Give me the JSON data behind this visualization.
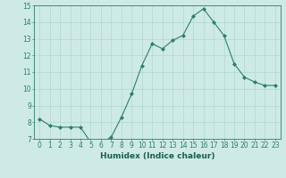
{
  "x": [
    0,
    1,
    2,
    3,
    4,
    5,
    6,
    7,
    8,
    9,
    10,
    11,
    12,
    13,
    14,
    15,
    16,
    17,
    18,
    19,
    20,
    21,
    22,
    23
  ],
  "y": [
    8.2,
    7.8,
    7.7,
    7.7,
    7.7,
    6.8,
    6.75,
    7.1,
    8.3,
    9.7,
    11.4,
    12.7,
    12.4,
    12.9,
    13.2,
    14.35,
    14.8,
    14.0,
    13.2,
    11.5,
    10.7,
    10.4,
    10.2,
    10.2
  ],
  "xlabel": "Humidex (Indice chaleur)",
  "ylim": [
    7,
    15
  ],
  "xlim_min": -0.5,
  "xlim_max": 23.5,
  "yticks": [
    7,
    8,
    9,
    10,
    11,
    12,
    13,
    14,
    15
  ],
  "xticks": [
    0,
    1,
    2,
    3,
    4,
    5,
    6,
    7,
    8,
    9,
    10,
    11,
    12,
    13,
    14,
    15,
    16,
    17,
    18,
    19,
    20,
    21,
    22,
    23
  ],
  "line_color": "#2d7d6e",
  "marker_color": "#2d7d6e",
  "bg_color": "#ceeae6",
  "grid_color": "#b0d8d4",
  "axis_color": "#2d7d6e",
  "label_color": "#1a5c52",
  "tick_fontsize": 5.5,
  "xlabel_fontsize": 6.5
}
